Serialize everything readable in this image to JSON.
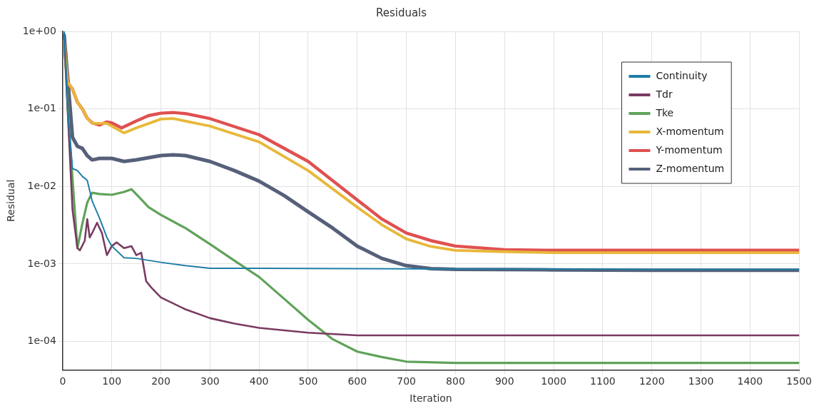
{
  "chart_data": {
    "type": "line",
    "title": "Residuals",
    "xlabel": "Iteration",
    "ylabel": "Residual",
    "log": "y",
    "grid": true,
    "legend": "top right",
    "marker": "none",
    "line_style": "solid",
    "xlim": [
      0,
      1500
    ],
    "xticks": [
      0,
      100,
      200,
      300,
      400,
      500,
      600,
      700,
      800,
      900,
      1000,
      1100,
      1200,
      1300,
      1400,
      1500
    ],
    "ylim": [
      4.3e-05,
      1
    ],
    "yticks": [
      {
        "value": 1,
        "label": "1e+00"
      },
      {
        "value": 0.1,
        "label": "1e-01"
      },
      {
        "value": 0.01,
        "label": "1e-02"
      },
      {
        "value": 0.001,
        "label": "1e-03"
      },
      {
        "value": 0.0001,
        "label": "1e-04"
      }
    ],
    "series": [
      {
        "name": "Continuity",
        "color": "#1f7ea6",
        "x": [
          3,
          10,
          20,
          30,
          40,
          50,
          60,
          75,
          90,
          100,
          125,
          150,
          200,
          250,
          300,
          400,
          600,
          800,
          1000,
          1200,
          1500
        ],
        "values": [
          1.0,
          0.1,
          0.017,
          0.016,
          0.0135,
          0.012,
          0.0065,
          0.0039,
          0.0022,
          0.0017,
          0.0012,
          0.00118,
          0.00105,
          0.00095,
          0.00088,
          0.00088,
          0.00087,
          0.00086,
          0.00086,
          0.00085,
          0.00085
        ]
      },
      {
        "name": "Tdr",
        "color": "#7a3b62",
        "x": [
          3,
          10,
          20,
          30,
          35,
          45,
          50,
          55,
          60,
          70,
          80,
          90,
          100,
          110,
          125,
          140,
          150,
          160,
          170,
          180,
          200,
          250,
          300,
          350,
          400,
          500,
          600,
          800,
          1000,
          1200,
          1500
        ],
        "values": [
          0.9,
          0.1,
          0.005,
          0.0016,
          0.0015,
          0.002,
          0.0038,
          0.0022,
          0.0025,
          0.0034,
          0.0025,
          0.0013,
          0.0017,
          0.0019,
          0.0016,
          0.0017,
          0.0013,
          0.0014,
          0.0006,
          0.0005,
          0.00037,
          0.00026,
          0.0002,
          0.00017,
          0.00015,
          0.00013,
          0.00012,
          0.00012,
          0.00012,
          0.00012,
          0.00012
        ]
      },
      {
        "name": "Tke",
        "color": "#5fa35a",
        "x": [
          3,
          13,
          30,
          40,
          50,
          60,
          75,
          100,
          125,
          140,
          160,
          175,
          200,
          250,
          300,
          350,
          400,
          450,
          500,
          550,
          600,
          650,
          700,
          800,
          1000,
          1200,
          1500
        ],
        "values": [
          0.8,
          0.053,
          0.0016,
          0.0033,
          0.0062,
          0.0083,
          0.008,
          0.0078,
          0.0085,
          0.0092,
          0.0068,
          0.0054,
          0.0043,
          0.0029,
          0.0018,
          0.0011,
          0.00068,
          0.00036,
          0.00019,
          0.000107,
          7.4e-05,
          6.3e-05,
          5.5e-05,
          5.3e-05,
          5.3e-05,
          5.3e-05,
          5.3e-05
        ]
      },
      {
        "name": "X-momentum",
        "color": "#e8b83a",
        "x": [
          3,
          10,
          20,
          30,
          40,
          50,
          60,
          90,
          100,
          125,
          150,
          200,
          225,
          300,
          400,
          500,
          600,
          650,
          700,
          750,
          800,
          900,
          1000,
          1200,
          1500
        ],
        "values": [
          0.75,
          0.22,
          0.18,
          0.122,
          0.1,
          0.076,
          0.065,
          0.065,
          0.06,
          0.049,
          0.057,
          0.074,
          0.075,
          0.06,
          0.0375,
          0.016,
          0.0054,
          0.0032,
          0.0021,
          0.00168,
          0.0015,
          0.00144,
          0.0014,
          0.0014,
          0.0014
        ]
      },
      {
        "name": "Y-momentum",
        "color": "#e05050",
        "x": [
          3,
          10,
          20,
          30,
          40,
          50,
          60,
          75,
          90,
          100,
          120,
          150,
          175,
          200,
          225,
          250,
          300,
          400,
          500,
          600,
          650,
          700,
          750,
          800,
          900,
          1000,
          1200,
          1500
        ],
        "values": [
          0.75,
          0.22,
          0.18,
          0.122,
          0.1,
          0.076,
          0.066,
          0.062,
          0.068,
          0.066,
          0.057,
          0.07,
          0.082,
          0.088,
          0.09,
          0.087,
          0.075,
          0.0465,
          0.021,
          0.0067,
          0.0038,
          0.0025,
          0.002,
          0.0017,
          0.00153,
          0.0015,
          0.0015,
          0.0015
        ]
      },
      {
        "name": "Z-momentum",
        "color": "#56607a",
        "x": [
          3,
          10,
          20,
          30,
          40,
          50,
          60,
          75,
          100,
          125,
          150,
          200,
          225,
          250,
          300,
          350,
          400,
          450,
          500,
          550,
          600,
          650,
          700,
          750,
          800,
          1000,
          1200,
          1500
        ],
        "values": [
          0.9,
          0.26,
          0.043,
          0.033,
          0.031,
          0.025,
          0.022,
          0.023,
          0.023,
          0.021,
          0.022,
          0.025,
          0.0255,
          0.025,
          0.021,
          0.016,
          0.0117,
          0.0077,
          0.0047,
          0.0029,
          0.0017,
          0.00118,
          0.00095,
          0.00087,
          0.00085,
          0.00084,
          0.00083,
          0.00083
        ]
      }
    ]
  }
}
